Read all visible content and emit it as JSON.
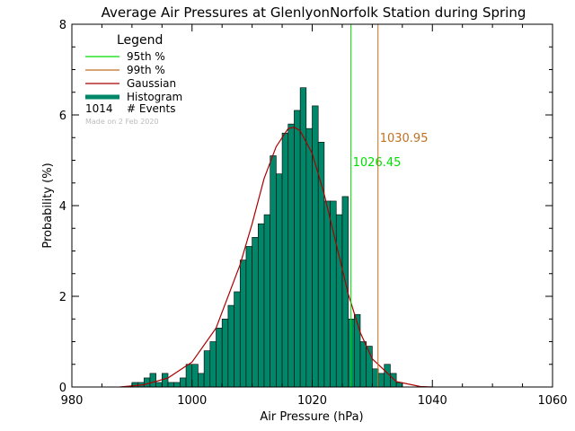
{
  "chart_data": {
    "type": "bar",
    "title": "Average Air Pressures at GlenlyonNorfolk Station during Spring",
    "xlabel": "Air Pressure (hPa)",
    "ylabel": "Probability (%)",
    "xlim": [
      980,
      1060
    ],
    "ylim": [
      0,
      8
    ],
    "x_ticks": [
      "980",
      "1000",
      "1020",
      "1040",
      "1060"
    ],
    "y_ticks": [
      "0",
      "2",
      "4",
      "6",
      "8"
    ],
    "bin_width": 1,
    "histogram": {
      "x": [
        990,
        991,
        992,
        993,
        994,
        995,
        996,
        997,
        998,
        999,
        1000,
        1001,
        1002,
        1003,
        1004,
        1005,
        1006,
        1007,
        1008,
        1009,
        1010,
        1011,
        1012,
        1013,
        1014,
        1015,
        1016,
        1017,
        1018,
        1019,
        1020,
        1021,
        1022,
        1023,
        1024,
        1025,
        1026,
        1027,
        1028,
        1029,
        1030,
        1031,
        1032,
        1033,
        1034
      ],
      "values": [
        0.1,
        0.1,
        0.2,
        0.3,
        0.1,
        0.3,
        0.1,
        0.1,
        0.2,
        0.5,
        0.5,
        0.3,
        0.8,
        1.0,
        1.3,
        1.5,
        1.8,
        2.1,
        2.8,
        3.1,
        3.3,
        3.6,
        3.8,
        5.1,
        4.7,
        5.6,
        5.8,
        6.1,
        6.6,
        5.7,
        6.2,
        5.4,
        4.1,
        4.1,
        3.8,
        4.2,
        1.5,
        1.6,
        1.0,
        0.9,
        0.4,
        0.3,
        0.5,
        0.3,
        0.1
      ]
    },
    "gaussian": {
      "x": [
        988,
        992,
        996,
        1000,
        1004,
        1008,
        1010,
        1012,
        1014,
        1016,
        1017,
        1018,
        1020,
        1022,
        1024,
        1026,
        1028,
        1030,
        1034,
        1038,
        1040
      ],
      "values": [
        0.0,
        0.05,
        0.2,
        0.55,
        1.3,
        2.7,
        3.6,
        4.6,
        5.3,
        5.7,
        5.73,
        5.65,
        5.15,
        4.25,
        3.15,
        2.05,
        1.2,
        0.62,
        0.12,
        0.01,
        0.0
      ]
    },
    "percentiles": [
      {
        "name": "95th %",
        "value": 1026.45,
        "label": "1026.45",
        "color": "#00dd00"
      },
      {
        "name": "99th %",
        "value": 1030.95,
        "label": "1030.95",
        "color": "#c07020"
      }
    ],
    "legend": {
      "title": "Legend",
      "placement": "top-left",
      "items": [
        {
          "label": "95th %",
          "color": "#00dd00"
        },
        {
          "label": "99th %",
          "color": "#c07020"
        },
        {
          "label": "Gaussian",
          "color": "#aa0000"
        },
        {
          "label": "Histogram",
          "color": "#00876a"
        }
      ],
      "events_count": "1014",
      "events_label": "# Events",
      "note": "Made on 2 Feb 2020"
    },
    "colors": {
      "histogram_fill": "#00876a",
      "histogram_edge": "#000000",
      "gaussian": "#aa0000"
    },
    "grid": false
  }
}
